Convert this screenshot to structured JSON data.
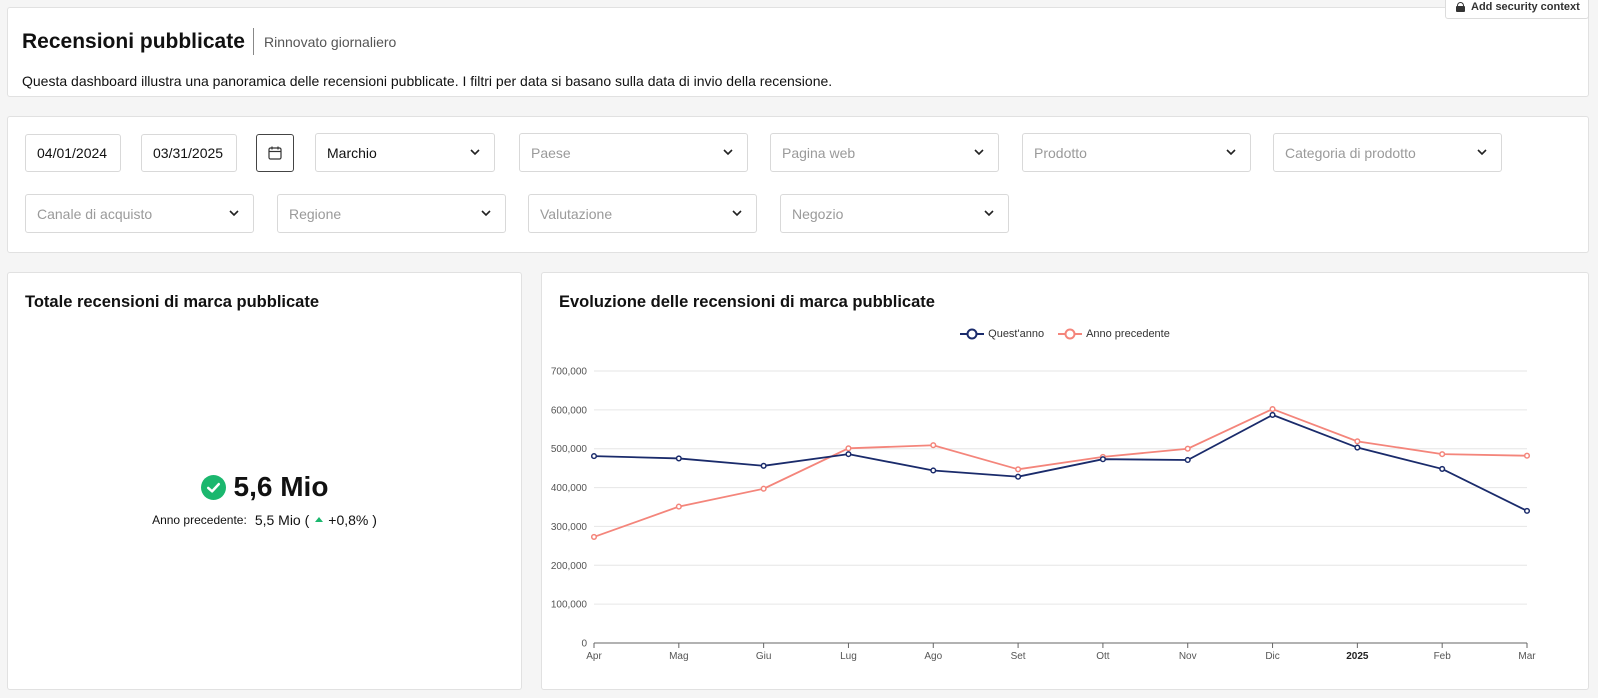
{
  "header": {
    "title": "Recensioni pubblicate",
    "subtitle": "Rinnovato giornaliero",
    "description": "Questa dashboard illustra una panoramica delle recensioni pubblicate. I filtri per data si basano sulla data di invio della recensione.",
    "security_button": "Add security context",
    "security_icon": "lock-icon"
  },
  "filters": {
    "start_date": "04/01/2024",
    "end_date": "03/31/2025",
    "calendar_icon": "calendar-icon",
    "brand": {
      "value": "Marchio"
    },
    "country": {
      "placeholder": "Paese"
    },
    "web_page": {
      "placeholder": "Pagina web"
    },
    "product": {
      "placeholder": "Prodotto"
    },
    "product_category": {
      "placeholder": "Categoria di prodotto"
    },
    "purchase_channel": {
      "placeholder": "Canale di acquisto"
    },
    "region": {
      "placeholder": "Regione"
    },
    "rating": {
      "placeholder": "Valutazione"
    },
    "store": {
      "placeholder": "Negozio"
    }
  },
  "kpi": {
    "title": "Totale recensioni di marca pubblicate",
    "value": "5,6 Mio",
    "previous_label": "Anno precedente:",
    "previous_value": "5,5 Mio (",
    "change": "+0,8% )",
    "status_icon": "check-circle-icon",
    "trend_icon": "triangle-up-icon",
    "status_color": "#1bb76e"
  },
  "chart": {
    "title": "Evoluzione delle recensioni di marca pubblicate"
  },
  "chart_data": {
    "type": "line",
    "title": "Evoluzione delle recensioni di marca pubblicate",
    "categories": [
      "Apr",
      "Mag",
      "Giu",
      "Lug",
      "Ago",
      "Set",
      "Ott",
      "Nov",
      "Dic",
      "2025",
      "Feb",
      "Mar"
    ],
    "bold_categories": [
      "2025"
    ],
    "ylim": [
      0,
      700000
    ],
    "yticks": [
      "0",
      "100,000",
      "200,000",
      "300,000",
      "400,000",
      "500,000",
      "600,000",
      "700,000"
    ],
    "grid": true,
    "legend": "top-center",
    "series": [
      {
        "name": "Quest'anno",
        "color": "#1a2b6b",
        "values": [
          481000,
          475000,
          456000,
          486000,
          444000,
          428000,
          473000,
          471000,
          587000,
          503000,
          448000,
          340000
        ]
      },
      {
        "name": "Anno precedente",
        "color": "#f4857b",
        "values": [
          273000,
          351000,
          397000,
          501000,
          509000,
          447000,
          479000,
          500000,
          602000,
          519000,
          486000,
          482000
        ]
      }
    ]
  }
}
